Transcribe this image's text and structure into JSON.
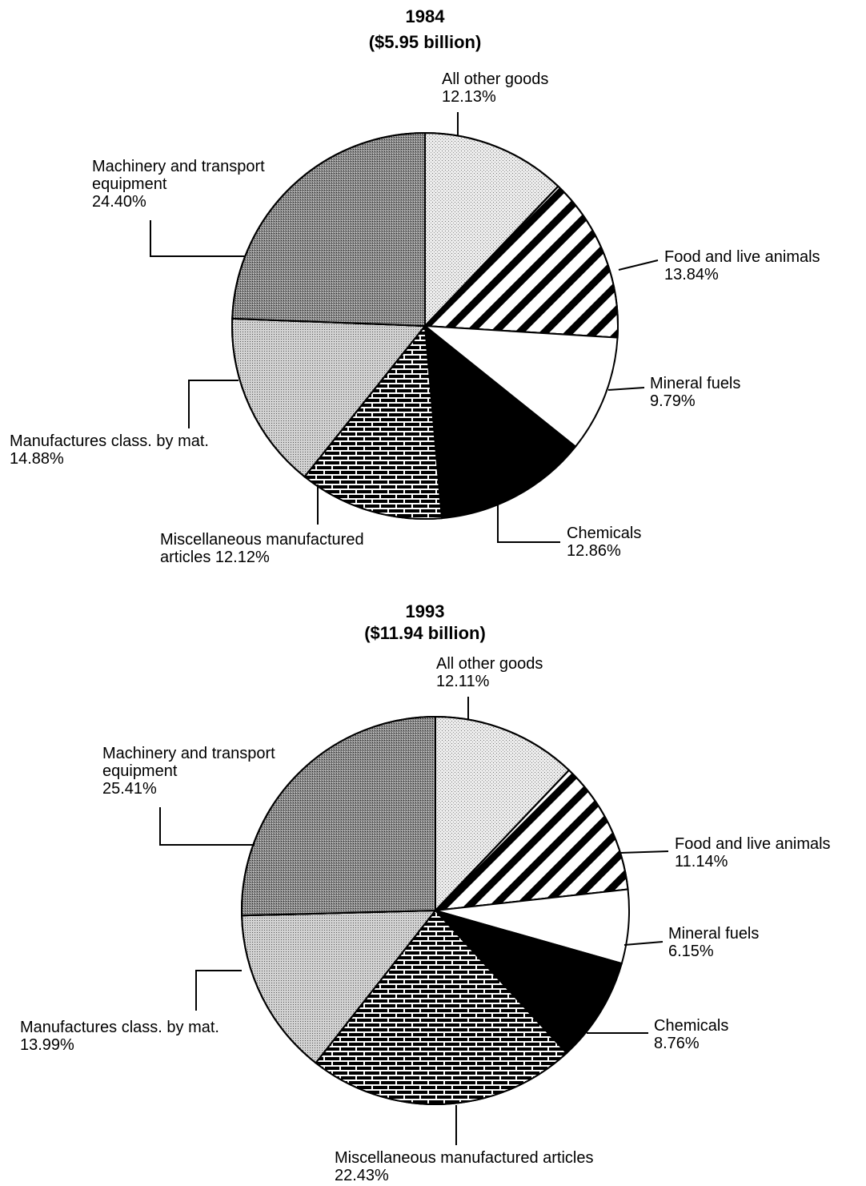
{
  "chart_data": [
    {
      "type": "pie",
      "title": "1984",
      "subtitle": "($5.95 billion)",
      "categories": [
        "All other goods",
        "Food and live animals",
        "Mineral fuels",
        "Chemicals",
        "Miscellaneous manufactured articles",
        "Manufactures class. by mat.",
        "Machinery and transport equipment"
      ],
      "values": [
        12.13,
        13.84,
        9.79,
        12.86,
        12.12,
        14.88,
        24.4
      ],
      "value_labels": [
        "12.13%",
        "13.84%",
        "9.79%",
        "12.86%",
        "12.12%",
        "14.88%",
        "24.40%"
      ],
      "colors": [
        "#ececec",
        "#ffffff",
        "#ffffff",
        "#000000",
        "#000000",
        "#d2d2d2",
        "#8a8a8a"
      ]
    },
    {
      "type": "pie",
      "title": "1993",
      "subtitle": "($11.94 billion)",
      "categories": [
        "All other goods",
        "Food and live animals",
        "Mineral fuels",
        "Chemicals",
        "Miscellaneous manufactured articles",
        "Manufactures class. by mat.",
        "Machinery and transport equipment"
      ],
      "values": [
        12.11,
        11.14,
        6.15,
        8.76,
        22.43,
        13.99,
        25.41
      ],
      "value_labels": [
        "12.11%",
        "11.14%",
        "6.15%",
        "8.76%",
        "22.43%",
        "13.99%",
        "25.41%"
      ],
      "colors": [
        "#ececec",
        "#ffffff",
        "#ffffff",
        "#000000",
        "#000000",
        "#d2d2d2",
        "#8a8a8a"
      ]
    }
  ]
}
